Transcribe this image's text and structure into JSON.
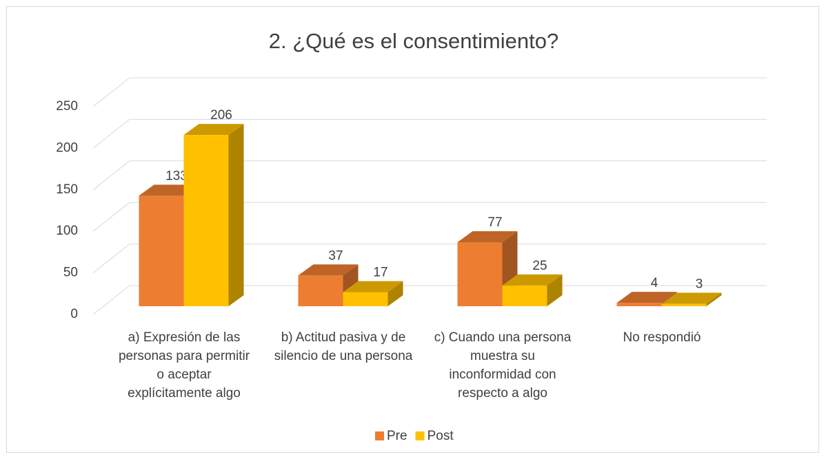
{
  "chart_data": {
    "type": "bar3d",
    "title": "2. ¿Qué es el consentimiento?",
    "categories": [
      "a) Expresión de las personas para permitir o aceptar explícitamente algo",
      "b) Actitud pasiva y de silencio de una persona",
      "c) Cuando una persona muestra su inconformidad con respecto a algo",
      "No respondió"
    ],
    "series": [
      {
        "name": "Pre",
        "color": "#ED7D31",
        "values": [
          133,
          37,
          77,
          4
        ]
      },
      {
        "name": "Post",
        "color": "#FFC000",
        "values": [
          206,
          17,
          25,
          3
        ]
      }
    ],
    "ylim": [
      0,
      250
    ],
    "yticks": [
      0,
      50,
      100,
      150,
      200,
      250
    ],
    "grid": true,
    "legend": "bottom"
  }
}
